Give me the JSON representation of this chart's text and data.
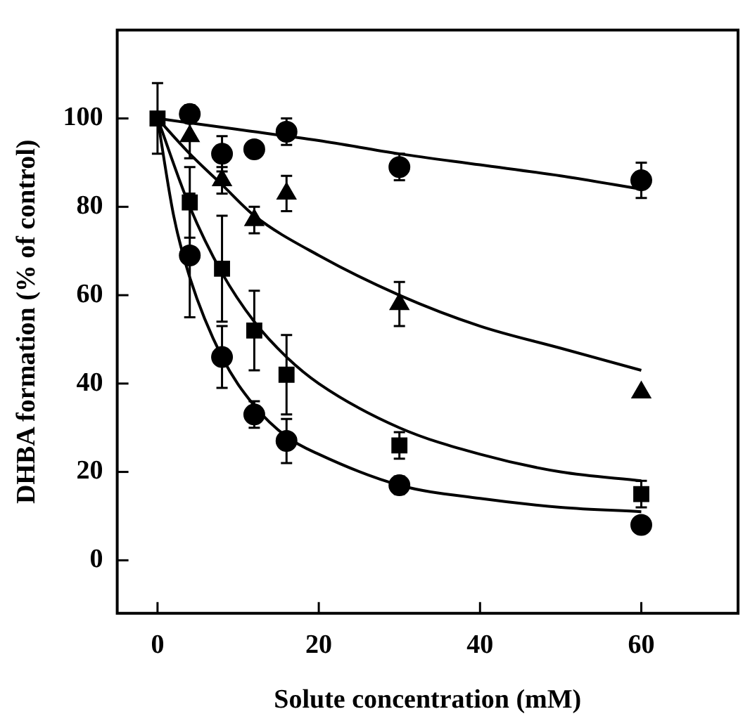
{
  "chart_data": {
    "type": "scatter",
    "xlabel": "Solute concentration (mM)",
    "ylabel": "DHBA formation (% of control)",
    "xlim": [
      -5,
      72
    ],
    "xticks": [
      0,
      20,
      40,
      60
    ],
    "ylim": [
      -12,
      120
    ],
    "yticks": [
      0,
      20,
      40,
      60,
      80,
      100
    ],
    "grid": false,
    "legend": false,
    "series": [
      {
        "marker": "circle",
        "color": "#000000",
        "x": [
          4,
          8,
          12,
          16,
          30,
          60
        ],
        "values": [
          101,
          92,
          93,
          97,
          89,
          86
        ],
        "errors": [
          2,
          4,
          null,
          3,
          3,
          4
        ]
      },
      {
        "marker": "triangle",
        "color": "#000000",
        "x": [
          4,
          8,
          12,
          16,
          30,
          60
        ],
        "values": [
          96,
          86,
          77,
          83,
          58,
          38
        ],
        "errors": [
          5,
          3,
          3,
          4,
          5,
          null
        ]
      },
      {
        "marker": "square",
        "color": "#000000",
        "x": [
          0,
          4,
          8,
          12,
          16,
          30,
          60
        ],
        "values": [
          100,
          81,
          66,
          52,
          42,
          26,
          15
        ],
        "errors": [
          8,
          8,
          12,
          9,
          9,
          3,
          3
        ]
      },
      {
        "marker": "circle",
        "color": "#000000",
        "x": [
          4,
          8,
          12,
          16,
          30,
          60
        ],
        "values": [
          69,
          46,
          33,
          27,
          17,
          8
        ],
        "errors": [
          14,
          7,
          3,
          5,
          2,
          null
        ]
      },
      {
        "type": "line",
        "marker": "none",
        "color": "#000000",
        "x": [
          0,
          10,
          20,
          30,
          40,
          50,
          60
        ],
        "values": [
          100,
          97.5,
          95,
          92,
          89.5,
          87,
          84
        ]
      },
      {
        "type": "line",
        "marker": "none",
        "color": "#000000",
        "x": [
          0,
          4,
          8,
          12,
          20,
          30,
          40,
          50,
          60
        ],
        "values": [
          100,
          92,
          85,
          78,
          69,
          60,
          53,
          48,
          43
        ]
      },
      {
        "type": "line",
        "marker": "none",
        "color": "#000000",
        "x": [
          0,
          4,
          8,
          12,
          16,
          20,
          30,
          40,
          50,
          60
        ],
        "values": [
          100,
          80,
          65,
          54,
          46,
          40,
          30,
          24,
          20,
          18
        ]
      },
      {
        "type": "line",
        "marker": "none",
        "color": "#000000",
        "x": [
          0,
          2,
          4,
          8,
          12,
          16,
          20,
          30,
          40,
          50,
          60
        ],
        "values": [
          100,
          78,
          64,
          46,
          35,
          28,
          24,
          17,
          14,
          12,
          11
        ]
      }
    ]
  }
}
